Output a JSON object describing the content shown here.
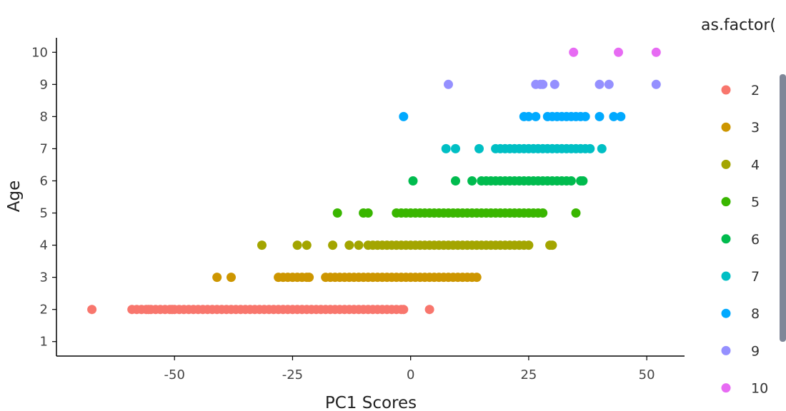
{
  "chart_data": {
    "type": "scatter",
    "xlabel": "PC1 Scores",
    "ylabel": "Age",
    "xlim": [
      -75,
      58
    ],
    "ylim": [
      0.55,
      10.45
    ],
    "x_ticks": [
      -50,
      -25,
      0,
      25,
      50
    ],
    "x_tick_labels": [
      "-50",
      "-25",
      "0",
      "25",
      "50"
    ],
    "y_ticks": [
      1,
      2,
      3,
      4,
      5,
      6,
      7,
      8,
      9,
      10
    ],
    "y_tick_labels": [
      "1",
      "2",
      "3",
      "4",
      "5",
      "6",
      "7",
      "8",
      "9",
      "10"
    ],
    "grid": false,
    "legend": {
      "title": "as.factor(",
      "placement": "right",
      "clipped_label": "10"
    },
    "series": [
      {
        "name": "2",
        "color": "#F8766D",
        "y": 2,
        "x": [
          -67.5,
          -59,
          -58,
          -57,
          -56,
          -55.5,
          -55,
          -54,
          -53,
          -52,
          -51,
          -50.5,
          -50,
          -49,
          -48,
          -47,
          -46,
          -45,
          -44,
          -43,
          -42,
          -41,
          -40,
          -39,
          -38,
          -37,
          -36,
          -35,
          -34,
          -33,
          -32,
          -31,
          -30,
          -29,
          -28,
          -27,
          -26,
          -25,
          -24,
          -23,
          -22,
          -21,
          -20,
          -19,
          -18,
          -17,
          -16,
          -15,
          -14,
          -13,
          -12,
          -11,
          -10,
          -9,
          -8,
          -7,
          -6,
          -5,
          -4,
          -3,
          -2,
          -1.5,
          4
        ]
      },
      {
        "name": "3",
        "color": "#CD9600",
        "y": 3,
        "x": [
          -41,
          -38,
          -28,
          -27,
          -26,
          -25,
          -24,
          -23,
          -22,
          -21.5,
          -18,
          -17,
          -16,
          -15,
          -14,
          -13,
          -12,
          -11,
          -10,
          -9,
          -8,
          -7,
          -6,
          -5,
          -4,
          -3,
          -2,
          -1,
          0,
          1,
          2,
          3,
          4,
          5,
          6,
          7,
          8,
          9,
          10,
          11,
          12,
          13,
          14
        ]
      },
      {
        "name": "4",
        "color": "#A3A500",
        "y": 4,
        "x": [
          -31.5,
          -24,
          -22,
          -16.5,
          -13,
          -11,
          -9,
          -8,
          -7,
          -6,
          -5,
          -4,
          -3,
          -2,
          -1,
          0,
          1,
          2,
          3,
          4,
          5,
          6,
          7,
          8,
          9,
          10,
          11,
          12,
          13,
          14,
          15,
          16,
          17,
          18,
          19,
          20,
          21,
          22,
          23,
          24,
          25,
          29.5,
          30
        ]
      },
      {
        "name": "5",
        "color": "#39B600",
        "y": 5,
        "x": [
          -15.5,
          -10,
          -9,
          -3,
          -2,
          -1,
          0,
          1,
          2,
          3,
          4,
          5,
          6,
          7,
          8,
          9,
          10,
          11,
          12,
          13,
          14,
          15,
          16,
          17,
          18,
          19,
          20,
          21,
          22,
          23,
          24,
          25,
          26,
          27,
          28,
          35
        ]
      },
      {
        "name": "6",
        "color": "#00BB4E",
        "y": 6,
        "x": [
          0.5,
          9.5,
          13,
          15,
          16,
          17,
          18,
          19,
          20,
          21,
          22,
          23,
          24,
          25,
          26,
          27,
          28,
          29,
          30,
          31,
          32,
          33,
          34,
          36,
          36.5
        ]
      },
      {
        "name": "7",
        "color": "#00BFC4",
        "y": 7,
        "x": [
          7.5,
          9.5,
          14.5,
          18,
          19,
          20,
          21,
          22,
          23,
          24,
          25,
          26,
          27,
          28,
          29,
          30,
          31,
          32,
          33,
          34,
          35,
          36,
          37,
          38,
          40.5
        ]
      },
      {
        "name": "8",
        "color": "#00A9FF",
        "y": 8,
        "x": [
          -1.5,
          24,
          25,
          26.5,
          29,
          30,
          31,
          32,
          33,
          34,
          35,
          36,
          37,
          40,
          43,
          44.5
        ]
      },
      {
        "name": "9",
        "color": "#9590FF",
        "y": 9,
        "x": [
          8,
          26.5,
          27.5,
          28,
          30.5,
          40,
          42,
          52
        ]
      },
      {
        "name": "10",
        "color": "#E76BF3",
        "y": 10,
        "x": [
          34.5,
          44,
          52
        ]
      }
    ]
  }
}
